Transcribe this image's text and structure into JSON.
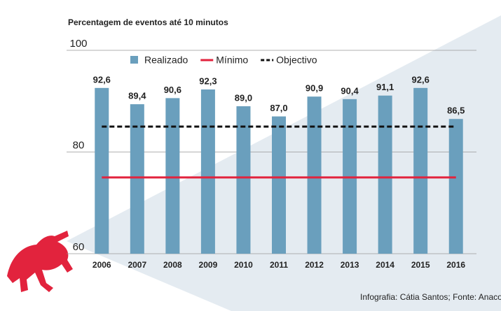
{
  "chart_data": {
    "type": "bar",
    "title": "Percentagem de eventos até 10 minutos",
    "categories": [
      "2006",
      "2007",
      "2008",
      "2009",
      "2010",
      "2011",
      "2012",
      "2013",
      "2014",
      "2015",
      "2016"
    ],
    "series": [
      {
        "name": "Realizado",
        "type": "bar",
        "color": "#6a9fbd",
        "values": [
          92.6,
          89.4,
          90.6,
          92.3,
          89.0,
          87.0,
          90.9,
          90.4,
          91.1,
          92.6,
          86.5
        ],
        "value_labels": [
          "92,6",
          "89,4",
          "90,6",
          "92,3",
          "89,0",
          "87,0",
          "90,9",
          "90,4",
          "91,1",
          "92,6",
          "86,5"
        ]
      },
      {
        "name": "Mínimo",
        "type": "line",
        "color": "#e2233d",
        "values": [
          75,
          75,
          75,
          75,
          75,
          75,
          75,
          75,
          75,
          75,
          75
        ]
      },
      {
        "name": "Objectivo",
        "type": "dashed-line",
        "color": "#111111",
        "values": [
          85,
          85,
          85,
          85,
          85,
          85,
          85,
          85,
          85,
          85,
          85
        ]
      }
    ],
    "ylim": [
      60,
      100
    ],
    "yticks": [
      60,
      80,
      100
    ],
    "grid": true,
    "footnote": "Infografia: Cátia Santos; Fonte: Anacom"
  }
}
